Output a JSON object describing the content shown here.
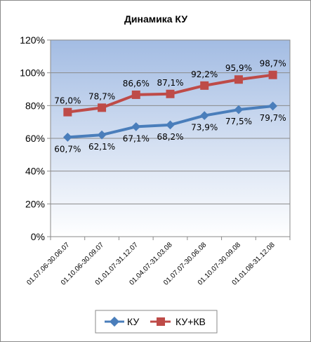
{
  "chart_data": {
    "type": "line",
    "title": "Динамика  КУ",
    "categories": [
      "01.07.06-30.06.07",
      "01.10.06-30.09.07",
      "01.01.07-31.12.07",
      "01.04.07-31.03.08",
      "01.07.07-30.06.08",
      "01.10.07-30.09.08",
      "01.01.08-31.12.08"
    ],
    "series": [
      {
        "name": "КУ",
        "values": [
          60.7,
          62.1,
          67.1,
          68.2,
          73.9,
          77.5,
          79.7
        ],
        "labels": [
          "60,7%",
          "62,1%",
          "67,1%",
          "68,2%",
          "73,9%",
          "77,5%",
          "79,7%"
        ],
        "color": "#4a7ebb",
        "marker": "diamond",
        "label_position": "below"
      },
      {
        "name": "КУ+КВ",
        "values": [
          76.0,
          78.7,
          86.6,
          87.1,
          92.2,
          95.9,
          98.7
        ],
        "labels": [
          "76,0%",
          "78,7%",
          "86,6%",
          "87,1%",
          "92,2%",
          "95,9%",
          "98,7%"
        ],
        "color": "#be4b48",
        "marker": "square",
        "label_position": "above"
      }
    ],
    "ylim": [
      0,
      120
    ],
    "yticks": [
      0,
      20,
      40,
      60,
      80,
      100,
      120
    ],
    "ytick_labels": [
      "0%",
      "20%",
      "40%",
      "60%",
      "80%",
      "100%",
      "120%"
    ],
    "xlabel": "",
    "ylabel": "",
    "grid": true,
    "legend_position": "bottom",
    "plot_gradient": [
      "#a3bce3",
      "#ffffff"
    ]
  }
}
